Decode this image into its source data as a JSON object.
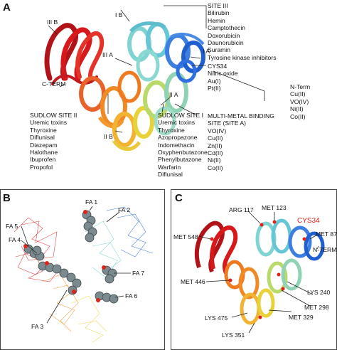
{
  "panel_a": {
    "letter": "A",
    "domain_labels": {
      "iii_b": "III B",
      "i_b": "I B",
      "iii_a": "III A",
      "i_a": "I A",
      "ii_a": "II A",
      "ii_b": "II B",
      "c_term": "C-TERM"
    },
    "site_iii": [
      "SITE III",
      "Bilirubin",
      "Hemin",
      "Camptothecin",
      "Doxorubicin",
      "Daunorubicin",
      "Suramin",
      "Tyrosine kinase inhibitors"
    ],
    "cys34": [
      "CYS34",
      "Nitric oxide",
      "Au(I)",
      "Pt(II)"
    ],
    "n_term": [
      "N-Term",
      "Cu(II)",
      "VO(IV)",
      "Ni(II)",
      "Co(II)"
    ],
    "multi_metal": [
      "MULTI-METAL BINDING",
      "SITE (SITE A)",
      "VO(IV)",
      "Cu(II)",
      "Zn(II)",
      "Cd(II)",
      "Ni(II)",
      "Co(II)"
    ],
    "sudlow_ii": [
      "SUDLOW SITE II",
      "Uremic toxins",
      "Thyroxine",
      "Diflunisal",
      "Diazepam",
      "Halothane",
      "Ibuprofen",
      "Propofol"
    ],
    "sudlow_i": [
      "SUDLOW SITE I",
      "Uremic toxins",
      "Thyroxine",
      "Azopropazone",
      "Indomethacin",
      "Oxyphenbutazone",
      "Phenylbutazone",
      "Warfarin",
      "Diflunisal"
    ]
  },
  "panel_b": {
    "letter": "B",
    "fa_labels": {
      "fa1": "FA 1",
      "fa2": "FA 2",
      "fa3": "FA 3",
      "fa4": "FA 4",
      "fa5": "FA 5",
      "fa6": "FA 6",
      "fa7": "FA 7"
    }
  },
  "panel_c": {
    "letter": "C",
    "residues": {
      "arg117": "ARG 117",
      "met123": "MET 123",
      "cys34": "CYS34",
      "met87": "MET 87",
      "nterm": "N-TERM",
      "met548": "MET 548",
      "met446": "MET 446",
      "lys240": "LYS 240",
      "met298": "MET 298",
      "met329": "MET 329",
      "lys475": "LYS 475",
      "lys351": "LYS 351"
    }
  },
  "colors": {
    "red": "#d7191c",
    "orange": "#f08a24",
    "yellow": "#e8d23a",
    "cyan": "#7fd3d0",
    "blue": "#1f5fd0",
    "accent_red": "#e0221b"
  }
}
